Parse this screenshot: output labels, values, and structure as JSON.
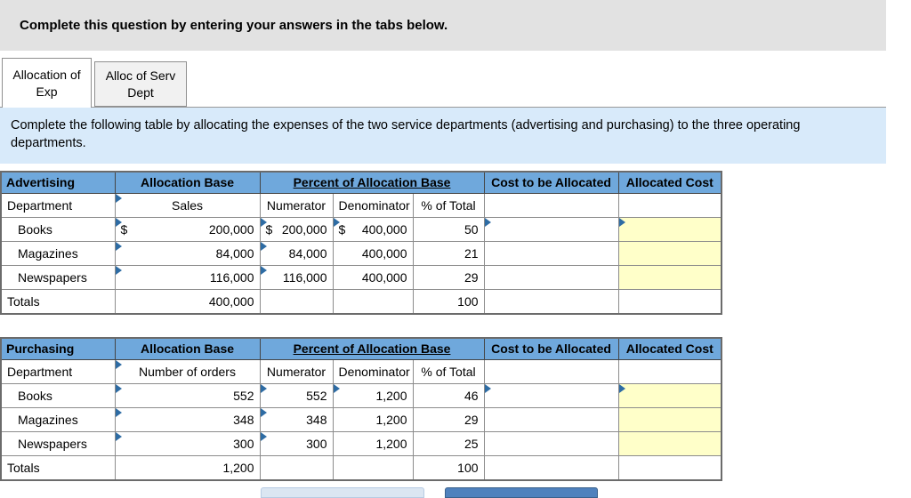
{
  "banner": {
    "text": "Complete this question by entering your answers in the tabs below."
  },
  "tabs": [
    {
      "label": "Allocation of Exp",
      "active": true
    },
    {
      "label": "Alloc of Serv Dept",
      "active": false
    }
  ],
  "instruction": "Complete the following table by allocating the expenses of the two service departments (advertising and purchasing) to the three operating departments.",
  "palette": {
    "header_blue": "#6fa8dc",
    "input_border_blue": "#4f81bd",
    "triangle_blue": "#2e6ca4",
    "answer_yellow": "#ffffc9",
    "instruction_blue": "#d8eafa",
    "banner_gray": "#e2e2e2"
  },
  "tables": [
    {
      "title": "Advertising",
      "headers": {
        "allocation_base": "Allocation Base",
        "percent_group": "Percent of Allocation Base",
        "cost_to_be_allocated": "Cost to be Allocated",
        "allocated_cost": "Allocated Cost"
      },
      "subheaders": {
        "department": "Department",
        "base": "Sales",
        "numerator": "Numerator",
        "denominator": "Denominator",
        "percent_of_total": "% of Total"
      },
      "rows": [
        {
          "label": "Books",
          "indent": true,
          "cells": [
            {
              "kind": "input",
              "align": "split",
              "prefix": "$",
              "value": "200,000",
              "triangle": true
            },
            {
              "kind": "input",
              "align": "split",
              "prefix": "$",
              "value": "200,000",
              "triangle": true
            },
            {
              "kind": "input",
              "align": "split",
              "prefix": "$",
              "value": "400,000",
              "triangle": true
            },
            {
              "kind": "calc",
              "align": "right",
              "value": "50"
            },
            {
              "kind": "input",
              "align": "right",
              "value": "",
              "triangle": true
            },
            {
              "kind": "input-yellow",
              "align": "right",
              "value": "",
              "triangle": true
            }
          ]
        },
        {
          "label": "Magazines",
          "indent": true,
          "cells": [
            {
              "kind": "input",
              "align": "right",
              "value": "84,000",
              "triangle": true
            },
            {
              "kind": "input",
              "align": "right",
              "value": "84,000",
              "triangle": true
            },
            {
              "kind": "plain",
              "align": "right",
              "value": "400,000"
            },
            {
              "kind": "plain",
              "align": "right",
              "value": "21"
            },
            {
              "kind": "plain",
              "align": "right",
              "value": ""
            },
            {
              "kind": "yellow",
              "align": "right",
              "value": ""
            }
          ]
        },
        {
          "label": "Newspapers",
          "indent": true,
          "cells": [
            {
              "kind": "input",
              "align": "right",
              "value": "116,000",
              "triangle": true
            },
            {
              "kind": "input",
              "align": "right",
              "value": "116,000",
              "triangle": true
            },
            {
              "kind": "plain",
              "align": "right",
              "value": "400,000"
            },
            {
              "kind": "plain",
              "align": "right",
              "value": "29"
            },
            {
              "kind": "plain",
              "align": "right",
              "value": ""
            },
            {
              "kind": "yellow",
              "align": "right",
              "value": ""
            }
          ]
        },
        {
          "label": "Totals",
          "indent": false,
          "cells": [
            {
              "kind": "total",
              "align": "right",
              "value": "400,000"
            },
            {
              "kind": "plain",
              "align": "right",
              "value": ""
            },
            {
              "kind": "plain",
              "align": "right",
              "value": ""
            },
            {
              "kind": "total",
              "align": "right",
              "value": "100"
            },
            {
              "kind": "plain",
              "align": "right",
              "value": ""
            },
            {
              "kind": "total",
              "align": "right",
              "value": ""
            }
          ]
        }
      ]
    },
    {
      "title": "Purchasing",
      "headers": {
        "allocation_base": "Allocation Base",
        "percent_group": "Percent of Allocation Base",
        "cost_to_be_allocated": "Cost to be Allocated",
        "allocated_cost": "Allocated Cost"
      },
      "subheaders": {
        "department": "Department",
        "base": "Number of orders",
        "numerator": "Numerator",
        "denominator": "Denominator",
        "percent_of_total": "% of Total"
      },
      "rows": [
        {
          "label": "Books",
          "indent": true,
          "cells": [
            {
              "kind": "input",
              "align": "right",
              "value": "552",
              "triangle": true
            },
            {
              "kind": "input",
              "align": "right",
              "value": "552",
              "triangle": true
            },
            {
              "kind": "input",
              "align": "right",
              "value": "1,200",
              "triangle": true
            },
            {
              "kind": "calc",
              "align": "right",
              "value": "46"
            },
            {
              "kind": "input",
              "align": "right",
              "value": "",
              "triangle": true
            },
            {
              "kind": "input-yellow",
              "align": "right",
              "value": "",
              "triangle": true
            }
          ]
        },
        {
          "label": "Magazines",
          "indent": true,
          "cells": [
            {
              "kind": "input",
              "align": "right",
              "value": "348",
              "triangle": true
            },
            {
              "kind": "input",
              "align": "right",
              "value": "348",
              "triangle": true
            },
            {
              "kind": "plain",
              "align": "right",
              "value": "1,200"
            },
            {
              "kind": "plain",
              "align": "right",
              "value": "29"
            },
            {
              "kind": "plain",
              "align": "right",
              "value": ""
            },
            {
              "kind": "yellow",
              "align": "right",
              "value": ""
            }
          ]
        },
        {
          "label": "Newspapers",
          "indent": true,
          "cells": [
            {
              "kind": "input",
              "align": "right",
              "value": "300",
              "triangle": true
            },
            {
              "kind": "input",
              "align": "right",
              "value": "300",
              "triangle": true
            },
            {
              "kind": "plain",
              "align": "right",
              "value": "1,200"
            },
            {
              "kind": "plain",
              "align": "right",
              "value": "25"
            },
            {
              "kind": "plain",
              "align": "right",
              "value": ""
            },
            {
              "kind": "yellow",
              "align": "right",
              "value": ""
            }
          ]
        },
        {
          "label": "Totals",
          "indent": false,
          "cells": [
            {
              "kind": "total",
              "align": "right",
              "value": "1,200"
            },
            {
              "kind": "plain",
              "align": "right",
              "value": ""
            },
            {
              "kind": "plain",
              "align": "right",
              "value": ""
            },
            {
              "kind": "total",
              "align": "right",
              "value": "100"
            },
            {
              "kind": "plain",
              "align": "right",
              "value": ""
            },
            {
              "kind": "total",
              "align": "right",
              "value": ""
            }
          ]
        }
      ]
    }
  ]
}
